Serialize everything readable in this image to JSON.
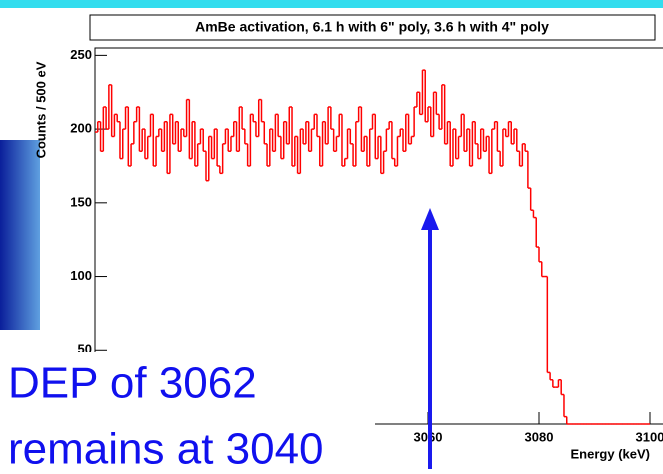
{
  "chart_data": {
    "type": "histogram",
    "title": "AmBe activation, 6.1 h with 6\" poly, 3.6 h with 4\" poly",
    "y_label": "Counts / 500 eV",
    "x_label": "Energy (keV)",
    "color": "#ff0000",
    "bins_start": 3000,
    "bin_width": 0.5,
    "values": [
      198,
      205,
      185,
      215,
      200,
      230,
      195,
      210,
      205,
      180,
      200,
      215,
      175,
      190,
      205,
      215,
      185,
      200,
      180,
      195,
      210,
      175,
      195,
      200,
      185,
      205,
      170,
      210,
      190,
      205,
      185,
      200,
      195,
      220,
      180,
      205,
      175,
      190,
      200,
      185,
      165,
      195,
      180,
      200,
      175,
      170,
      190,
      200,
      185,
      195,
      205,
      185,
      215,
      200,
      190,
      175,
      210,
      205,
      195,
      220,
      205,
      190,
      175,
      200,
      185,
      210,
      195,
      180,
      205,
      190,
      215,
      175,
      195,
      170,
      200,
      190,
      205,
      185,
      200,
      210,
      195,
      175,
      205,
      190,
      215,
      200,
      185,
      195,
      210,
      175,
      180,
      200,
      190,
      175,
      205,
      215,
      185,
      195,
      175,
      200,
      210,
      180,
      195,
      170,
      185,
      200,
      205,
      180,
      175,
      195,
      200,
      185,
      210,
      190,
      195,
      215,
      225,
      210,
      240,
      205,
      215,
      195,
      225,
      210,
      200,
      230,
      190,
      205,
      175,
      200,
      180,
      195,
      210,
      185,
      200,
      175,
      205,
      190,
      180,
      200,
      185,
      195,
      170,
      200,
      205,
      185,
      175,
      200,
      195,
      205,
      190,
      200,
      185,
      175,
      190,
      185,
      160,
      145,
      140,
      120,
      110,
      100,
      100,
      35,
      30,
      25,
      25,
      30,
      20,
      5,
      0,
      0,
      0,
      0,
      0,
      0,
      0,
      0,
      0,
      0,
      0,
      0,
      0,
      0,
      0,
      0,
      0,
      0,
      0,
      0,
      0,
      0,
      0,
      0,
      0,
      0,
      0,
      0,
      0,
      0
    ],
    "xlim": [
      3000,
      3100
    ],
    "ylim": [
      0,
      255
    ],
    "xticks": [
      3060,
      3080,
      3100
    ],
    "yticks": [
      50,
      100,
      150,
      200,
      250
    ]
  },
  "overlay": {
    "line1": "DEP of 3062",
    "line2": "remains at 3040"
  }
}
